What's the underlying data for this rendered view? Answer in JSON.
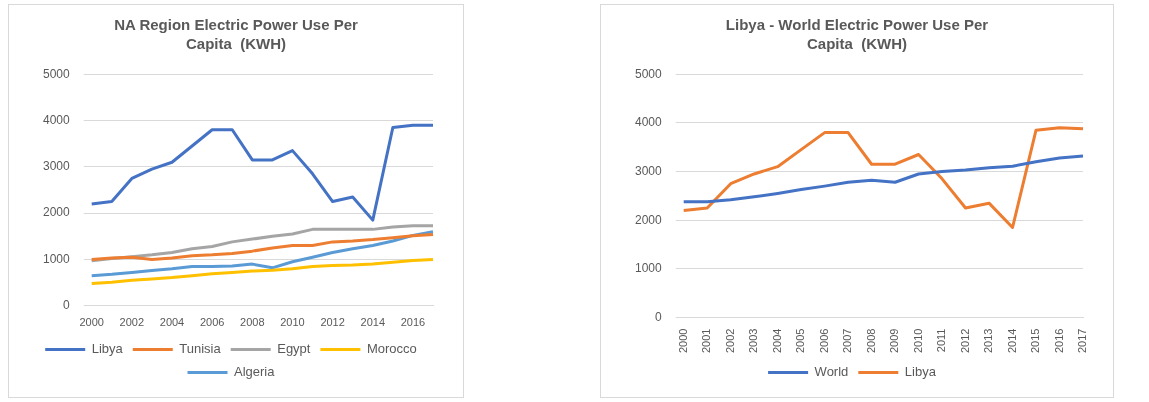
{
  "chart_data": [
    {
      "type": "line",
      "title": "NA Region Electric Power Use Per Capita  (KWH)",
      "categories": [
        "2000",
        null,
        "2002",
        null,
        "2004",
        null,
        "2006",
        null,
        "2008",
        null,
        "2010",
        null,
        "2012",
        null,
        "2014",
        null,
        "2016",
        null
      ],
      "series": [
        {
          "name": "Libya",
          "color": "#4472c4",
          "values": [
            2200,
            2250,
            2750,
            2950,
            3100,
            3450,
            3800,
            3800,
            3150,
            3150,
            3350,
            2850,
            2250,
            2350,
            1850,
            3850,
            3900,
            3900
          ]
        },
        {
          "name": "Tunisia",
          "color": "#ed7d31",
          "values": [
            1000,
            1030,
            1050,
            1000,
            1030,
            1080,
            1100,
            1130,
            1180,
            1250,
            1300,
            1300,
            1380,
            1400,
            1430,
            1470,
            1510,
            1540
          ]
        },
        {
          "name": "Egypt",
          "color": "#a5a5a5",
          "values": [
            970,
            1020,
            1060,
            1100,
            1150,
            1230,
            1280,
            1380,
            1440,
            1500,
            1550,
            1650,
            1650,
            1650,
            1650,
            1700,
            1730,
            1730
          ]
        },
        {
          "name": "Morocco",
          "color": "#ffc000",
          "values": [
            480,
            510,
            550,
            580,
            610,
            650,
            690,
            720,
            750,
            770,
            800,
            850,
            870,
            880,
            900,
            940,
            980,
            1000
          ]
        },
        {
          "name": "Algeria",
          "color": "#5b9bd5",
          "values": [
            650,
            680,
            720,
            760,
            800,
            850,
            850,
            860,
            900,
            820,
            950,
            1050,
            1150,
            1230,
            1300,
            1400,
            1520,
            1600
          ]
        }
      ],
      "ylim": [
        0,
        5000
      ],
      "yticks": [
        0,
        1000,
        2000,
        3000,
        4000,
        5000
      ],
      "grid": "y",
      "legend": "bottom",
      "marker": "none",
      "line_style": "solid"
    },
    {
      "type": "line",
      "title": "Libya - World Electric Power Use Per Capita  (KWH)",
      "categories": [
        "2000",
        "2001",
        "2002",
        "2003",
        "2004",
        "2005",
        "2006",
        "2007",
        "2008",
        "2009",
        "2010",
        "2011",
        "2012",
        "2013",
        "2014",
        "2015",
        "2016",
        "2017"
      ],
      "series": [
        {
          "name": "World",
          "color": "#4472c4",
          "values": [
            2380,
            2380,
            2420,
            2480,
            2550,
            2630,
            2700,
            2780,
            2820,
            2780,
            2950,
            3000,
            3030,
            3080,
            3110,
            3200,
            3280,
            3320
          ]
        },
        {
          "name": "Libya",
          "color": "#ed7d31",
          "values": [
            2200,
            2250,
            2750,
            2950,
            3100,
            3450,
            3800,
            3800,
            3150,
            3150,
            3350,
            2850,
            2250,
            2350,
            1850,
            3850,
            3900,
            3880
          ]
        }
      ],
      "ylim": [
        0,
        5000
      ],
      "yticks": [
        0,
        1000,
        2000,
        3000,
        4000,
        5000
      ],
      "grid": "y",
      "legend": "bottom",
      "marker": "none",
      "line_style": "solid"
    }
  ]
}
